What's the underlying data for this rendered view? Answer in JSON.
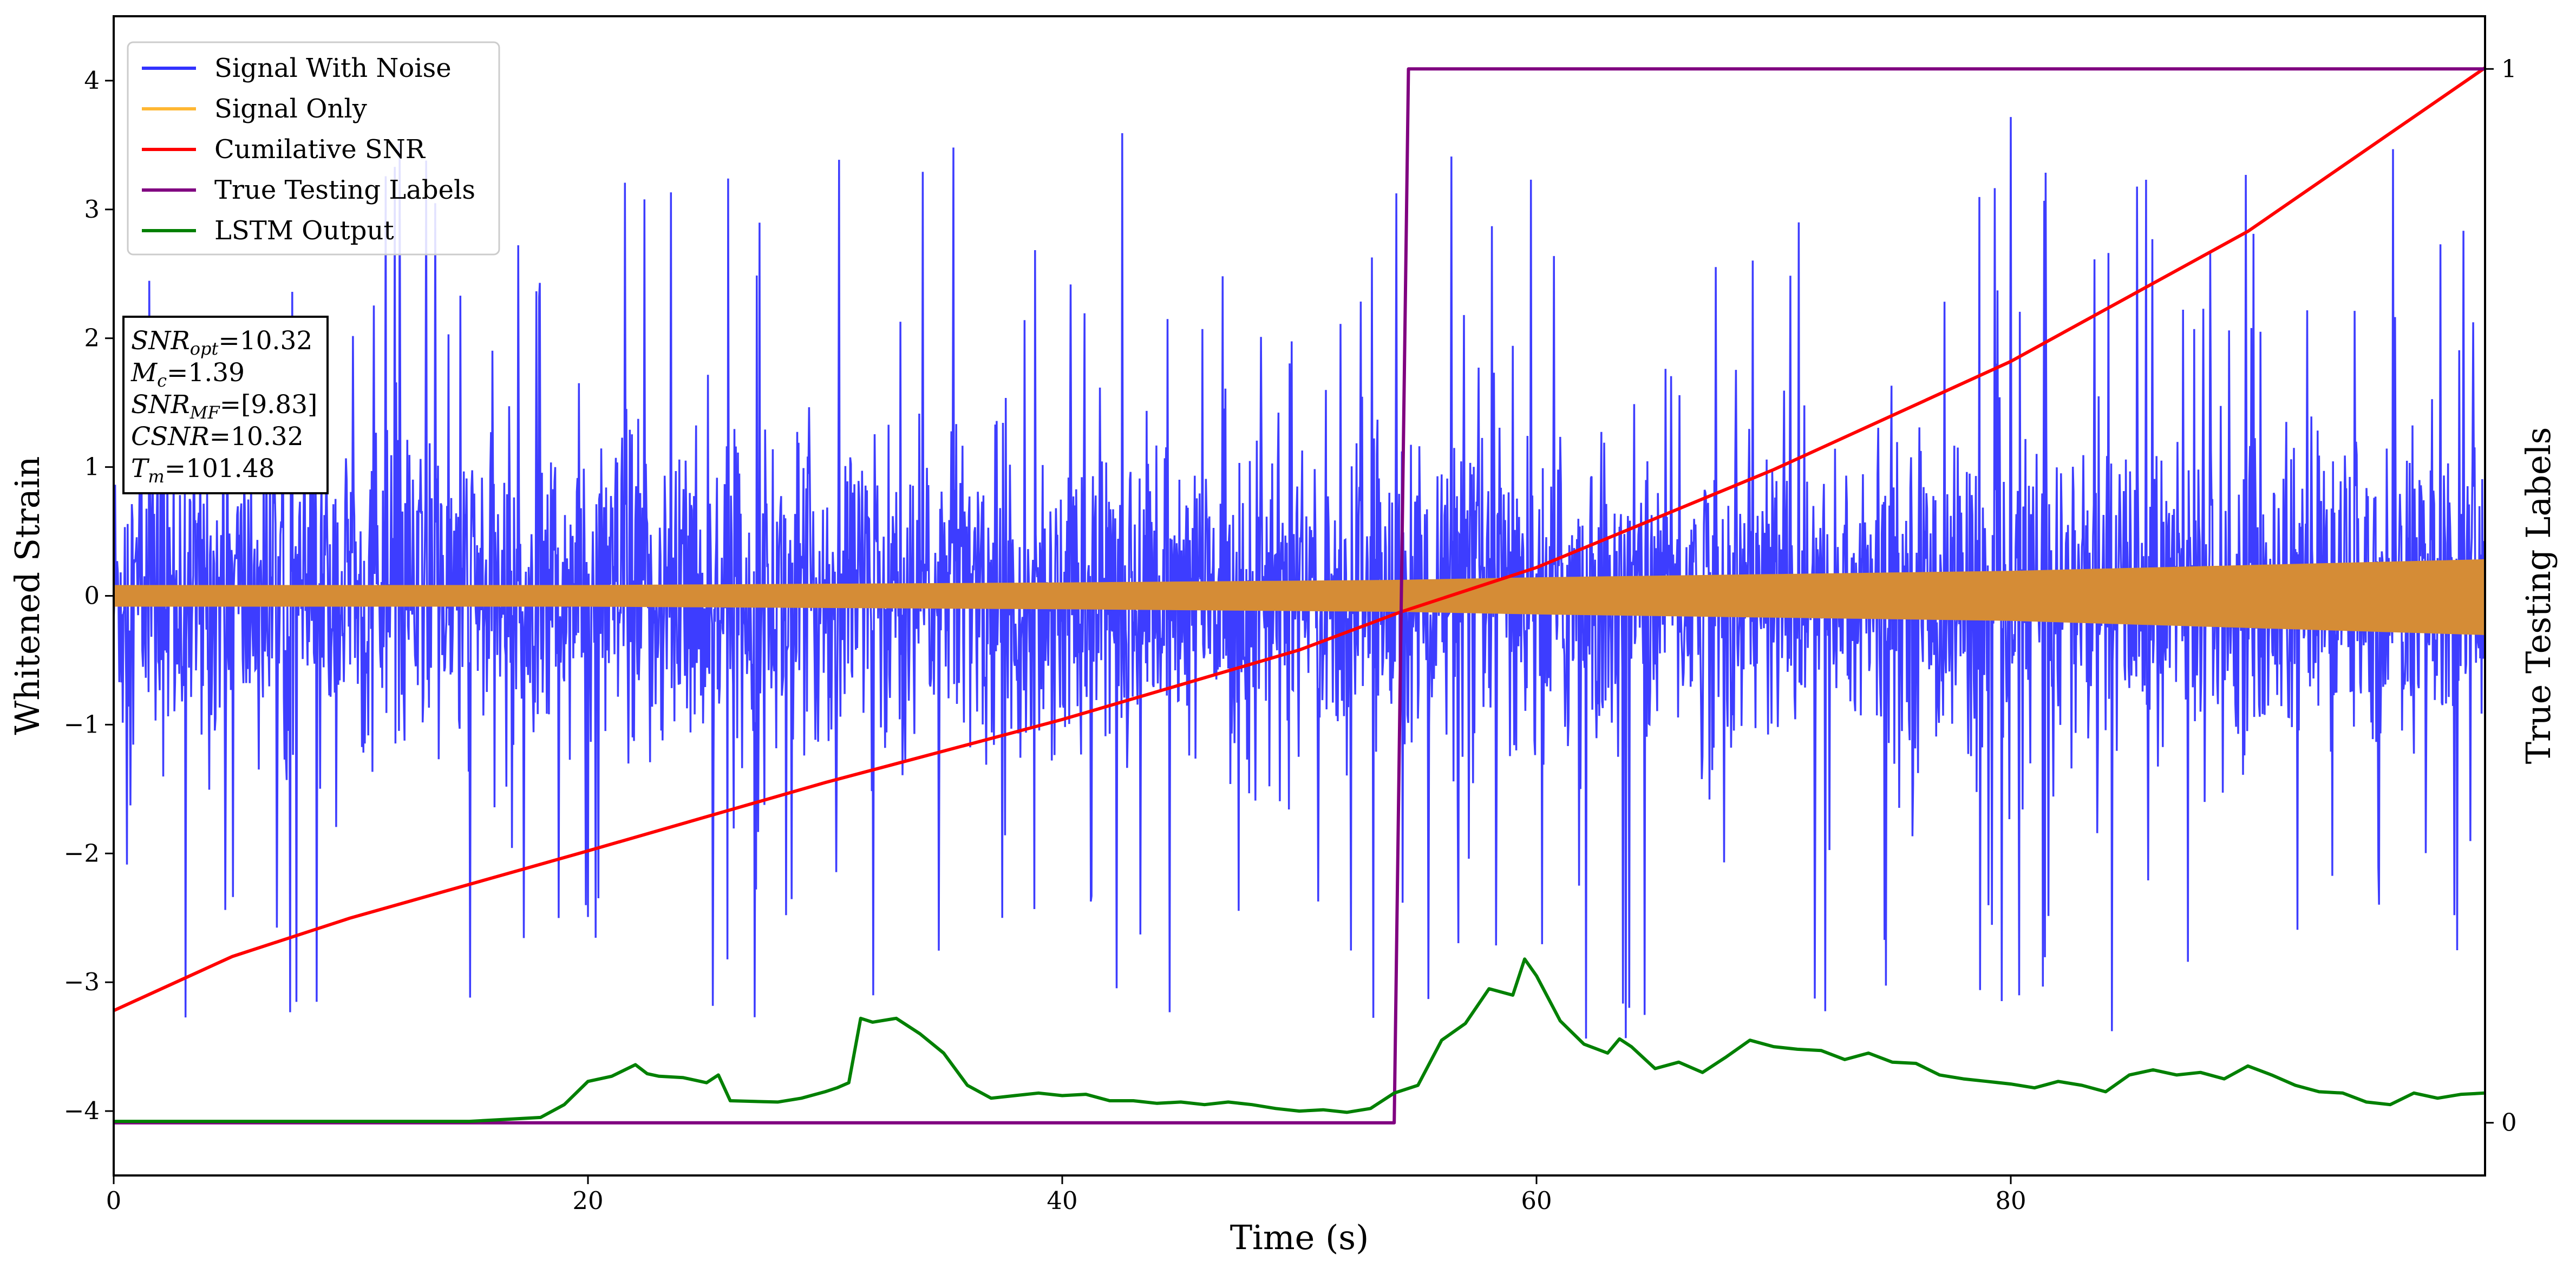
{
  "chart_data": {
    "type": "line",
    "title": "",
    "xlabel": "Time (s)",
    "ylabel": "Whitened Strain",
    "ylabel_right": "True Testing Labels",
    "xlim": [
      0,
      100
    ],
    "ylim": [
      -4.5,
      4.5
    ],
    "ylim_right": [
      -0.05,
      1.05
    ],
    "xticks": [
      0,
      20,
      40,
      60,
      80
    ],
    "yticks": [
      -4,
      -3,
      -2,
      -1,
      0,
      1,
      2,
      3,
      4
    ],
    "yticks_right": [
      0,
      1
    ],
    "legend_position": "top-left",
    "series": [
      {
        "name": "Signal With Noise",
        "color": "#3333ff",
        "kind": "noise",
        "amplitude": 1.0,
        "spike_range": [
          -3.5,
          3.8
        ]
      },
      {
        "name": "Signal Only",
        "color": "#ffb733",
        "kind": "envelope",
        "x": [
          0,
          20,
          40,
          54.2,
          60,
          80,
          100
        ],
        "upper": [
          0.08,
          0.08,
          0.1,
          0.12,
          0.14,
          0.19,
          0.28
        ],
        "lower": [
          -0.08,
          -0.08,
          -0.1,
          -0.12,
          -0.14,
          -0.19,
          -0.3
        ]
      },
      {
        "name": "Cumilative SNR",
        "color": "#ff0000",
        "axis": "left",
        "x": [
          0,
          5,
          10,
          20,
          30,
          40,
          50,
          54.2,
          60,
          70,
          80,
          90,
          100
        ],
        "y": [
          -3.22,
          -2.8,
          -2.5,
          -1.98,
          -1.45,
          -0.96,
          -0.42,
          -0.13,
          0.22,
          0.98,
          1.82,
          2.83,
          4.1
        ]
      },
      {
        "name": "True Testing Labels",
        "color": "#800080",
        "axis": "right",
        "x": [
          0,
          54.0,
          54.6,
          100
        ],
        "y": [
          0,
          0,
          1,
          1
        ]
      },
      {
        "name": "LSTM Output",
        "color": "#008000",
        "axis": "left",
        "x": [
          0,
          15,
          18,
          19,
          20,
          21,
          22,
          22.5,
          23,
          24,
          25,
          25.5,
          26,
          28,
          29,
          30,
          30.5,
          31,
          31.5,
          32,
          33,
          34,
          35,
          36,
          37,
          38,
          39,
          40,
          41,
          42,
          43,
          44,
          45,
          46,
          47,
          48,
          49,
          50,
          51,
          52,
          53,
          54,
          55,
          56,
          57,
          58,
          59,
          59.5,
          60,
          61,
          62,
          63,
          63.5,
          64,
          65,
          66,
          67,
          68,
          69,
          70,
          71,
          72,
          73,
          74,
          75,
          76,
          77,
          78,
          79,
          80,
          81,
          82,
          83,
          84,
          85,
          86,
          87,
          88,
          89,
          90,
          91,
          92,
          93,
          94,
          95,
          96,
          97,
          98,
          99,
          100
        ],
        "y": [
          -4.08,
          -4.08,
          -4.05,
          -3.95,
          -3.77,
          -3.73,
          -3.64,
          -3.71,
          -3.73,
          -3.74,
          -3.78,
          -3.72,
          -3.92,
          -3.93,
          -3.9,
          -3.85,
          -3.82,
          -3.78,
          -3.28,
          -3.31,
          -3.28,
          -3.4,
          -3.55,
          -3.8,
          -3.9,
          -3.88,
          -3.86,
          -3.88,
          -3.87,
          -3.92,
          -3.92,
          -3.94,
          -3.93,
          -3.95,
          -3.93,
          -3.95,
          -3.98,
          -4.0,
          -3.99,
          -4.01,
          -3.98,
          -3.86,
          -3.8,
          -3.45,
          -3.32,
          -3.05,
          -3.1,
          -2.82,
          -2.95,
          -3.3,
          -3.48,
          -3.55,
          -3.44,
          -3.5,
          -3.67,
          -3.62,
          -3.7,
          -3.58,
          -3.45,
          -3.5,
          -3.52,
          -3.53,
          -3.6,
          -3.55,
          -3.62,
          -3.63,
          -3.72,
          -3.75,
          -3.77,
          -3.79,
          -3.82,
          -3.77,
          -3.8,
          -3.85,
          -3.72,
          -3.68,
          -3.72,
          -3.7,
          -3.75,
          -3.65,
          -3.72,
          -3.8,
          -3.85,
          -3.86,
          -3.93,
          -3.95,
          -3.86,
          -3.9,
          -3.87,
          -3.86
        ]
      }
    ],
    "annotation": {
      "lines": [
        {
          "base": "SNR",
          "sub": "opt",
          "value": "=10.32"
        },
        {
          "base": "M",
          "sub": "c",
          "value": "=1.39"
        },
        {
          "base": "SNR",
          "sub": "MF",
          "value": "=[9.83]"
        },
        {
          "base": "CSNR",
          "sub": "",
          "value": "=10.32"
        },
        {
          "base": "T",
          "sub": "m",
          "value": "=101.48"
        }
      ]
    }
  }
}
